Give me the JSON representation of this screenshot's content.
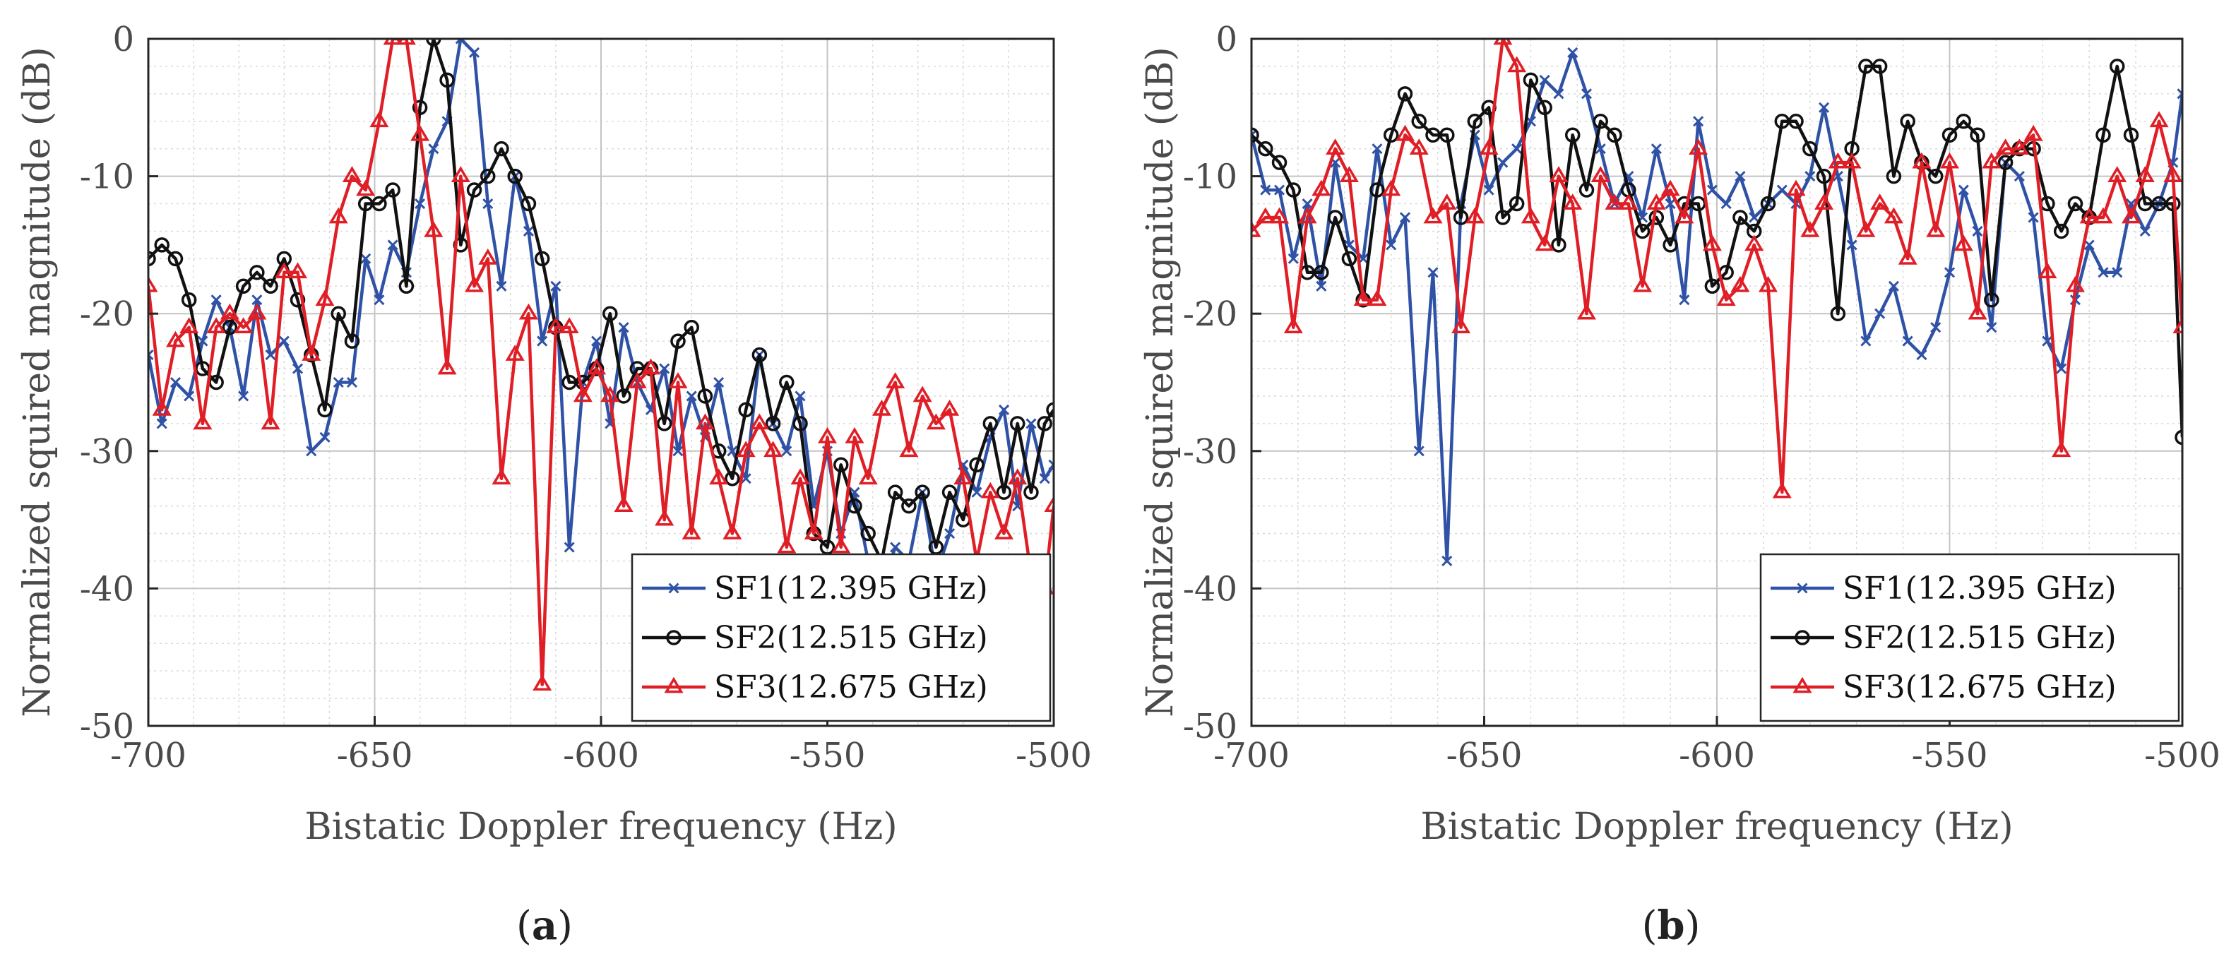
{
  "figure": {
    "panel_captions": [
      "(",
      "a",
      ")",
      "(",
      "b",
      ")"
    ]
  },
  "chart_data": [
    {
      "type": "line",
      "panel": "(a)",
      "xlabel": "Bistatic Doppler frequency (Hz)",
      "ylabel": "Normalized squired magnitude (dB)",
      "xlim": [
        -700,
        -500
      ],
      "ylim": [
        -50,
        0
      ],
      "xticks": [
        -700,
        -650,
        -600,
        -550,
        -500
      ],
      "xtick_labels": [
        "-700",
        "-650",
        "-600",
        "-550",
        "-500"
      ],
      "yticks": [
        0,
        -10,
        -20,
        -30,
        -40,
        -50
      ],
      "ytick_labels": [
        "0",
        "-10",
        "-20",
        "-30",
        "-40",
        "-50"
      ],
      "grid": true,
      "legend_position": "bottom-right",
      "series": [
        {
          "name": "SF1(12.395 GHz)",
          "color": "#2f52a6",
          "marker": "x",
          "x": [
            -700,
            -697,
            -694,
            -691,
            -688,
            -685,
            -682,
            -679,
            -676,
            -673,
            -670,
            -667,
            -664,
            -661,
            -658,
            -655,
            -652,
            -649,
            -646,
            -643,
            -640,
            -637,
            -634,
            -631,
            -628,
            -625,
            -622,
            -619,
            -616,
            -613,
            -610,
            -607,
            -604,
            -601,
            -598,
            -595,
            -592,
            -589,
            -586,
            -583,
            -580,
            -577,
            -574,
            -571,
            -568,
            -565,
            -562,
            -559,
            -556,
            -553,
            -550,
            -547,
            -544,
            -541,
            -538,
            -535,
            -532,
            -529,
            -526,
            -523,
            -520,
            -517,
            -514,
            -511,
            -508,
            -505,
            -502,
            -500
          ],
          "y": [
            -23,
            -28,
            -25,
            -26,
            -22,
            -19,
            -21,
            -26,
            -19,
            -23,
            -22,
            -24,
            -30,
            -29,
            -25,
            -25,
            -16,
            -19,
            -15,
            -17,
            -12,
            -8,
            -6,
            0,
            -1,
            -12,
            -18,
            -10,
            -14,
            -22,
            -18,
            -37,
            -25,
            -22,
            -28,
            -21,
            -25,
            -27,
            -24,
            -30,
            -26,
            -29,
            -25,
            -30,
            -32,
            -23,
            -28,
            -30,
            -26,
            -34,
            -30,
            -36,
            -33,
            -38,
            -40,
            -37,
            -38,
            -33,
            -39,
            -36,
            -31,
            -33,
            -29,
            -27,
            -34,
            -28,
            -32,
            -31
          ]
        },
        {
          "name": "SF2(12.515 GHz)",
          "color": "#111111",
          "marker": "o",
          "x": [
            -700,
            -697,
            -694,
            -691,
            -688,
            -685,
            -682,
            -679,
            -676,
            -673,
            -670,
            -667,
            -664,
            -661,
            -658,
            -655,
            -652,
            -649,
            -646,
            -643,
            -640,
            -637,
            -634,
            -631,
            -628,
            -625,
            -622,
            -619,
            -616,
            -613,
            -610,
            -607,
            -604,
            -601,
            -598,
            -595,
            -592,
            -589,
            -586,
            -583,
            -580,
            -577,
            -574,
            -571,
            -568,
            -565,
            -562,
            -559,
            -556,
            -553,
            -550,
            -547,
            -544,
            -541,
            -538,
            -535,
            -532,
            -529,
            -526,
            -523,
            -520,
            -517,
            -514,
            -511,
            -508,
            -505,
            -502,
            -500
          ],
          "y": [
            -16,
            -15,
            -16,
            -19,
            -24,
            -25,
            -21,
            -18,
            -17,
            -18,
            -16,
            -19,
            -23,
            -27,
            -20,
            -22,
            -12,
            -12,
            -11,
            -18,
            -5,
            0,
            -3,
            -15,
            -11,
            -10,
            -8,
            -10,
            -12,
            -16,
            -21,
            -25,
            -25,
            -24,
            -20,
            -26,
            -24,
            -24,
            -28,
            -22,
            -21,
            -26,
            -30,
            -32,
            -27,
            -23,
            -28,
            -25,
            -28,
            -36,
            -37,
            -31,
            -34,
            -36,
            -38,
            -33,
            -34,
            -33,
            -37,
            -33,
            -35,
            -31,
            -28,
            -33,
            -28,
            -33,
            -28,
            -27
          ]
        },
        {
          "name": "SF3(12.675 GHz)",
          "color": "#e01e26",
          "marker": "^",
          "x": [
            -700,
            -697,
            -694,
            -691,
            -688,
            -685,
            -682,
            -679,
            -676,
            -673,
            -670,
            -667,
            -664,
            -661,
            -658,
            -655,
            -652,
            -649,
            -646,
            -643,
            -640,
            -637,
            -634,
            -631,
            -628,
            -625,
            -622,
            -619,
            -616,
            -613,
            -610,
            -607,
            -604,
            -601,
            -598,
            -595,
            -592,
            -589,
            -586,
            -583,
            -580,
            -577,
            -574,
            -571,
            -568,
            -565,
            -562,
            -559,
            -556,
            -553,
            -550,
            -547,
            -544,
            -541,
            -538,
            -535,
            -532,
            -529,
            -526,
            -523,
            -520,
            -517,
            -514,
            -511,
            -508,
            -505,
            -502,
            -500
          ],
          "y": [
            -18,
            -27,
            -22,
            -21,
            -28,
            -21,
            -20,
            -21,
            -20,
            -28,
            -17,
            -17,
            -23,
            -19,
            -13,
            -10,
            -11,
            -6,
            0,
            0,
            -7,
            -14,
            -24,
            -10,
            -18,
            -16,
            -32,
            -23,
            -20,
            -47,
            -21,
            -21,
            -26,
            -24,
            -26,
            -34,
            -25,
            -24,
            -35,
            -25,
            -36,
            -28,
            -32,
            -36,
            -30,
            -28,
            -30,
            -37,
            -32,
            -36,
            -29,
            -37,
            -29,
            -32,
            -27,
            -25,
            -30,
            -26,
            -28,
            -27,
            -32,
            -38,
            -33,
            -36,
            -32,
            -39,
            -40,
            -34
          ]
        }
      ]
    },
    {
      "type": "line",
      "panel": "(b)",
      "xlabel": "Bistatic Doppler frequency (Hz)",
      "ylabel": "Normalized squired magnitude (dB)",
      "xlim": [
        -700,
        -500
      ],
      "ylim": [
        -50,
        0
      ],
      "xticks": [
        -700,
        -650,
        -600,
        -550,
        -500
      ],
      "xtick_labels": [
        "-700",
        "-650",
        "-600",
        "-550",
        "-500"
      ],
      "yticks": [
        0,
        -10,
        -20,
        -30,
        -40,
        -50
      ],
      "ytick_labels": [
        "0",
        "-10",
        "-20",
        "-30",
        "-40",
        "-50"
      ],
      "grid": true,
      "legend_position": "bottom-right",
      "series": [
        {
          "name": "SF1(12.395 GHz)",
          "color": "#2f52a6",
          "marker": "x",
          "x": [
            -700,
            -697,
            -694,
            -691,
            -688,
            -685,
            -682,
            -679,
            -676,
            -673,
            -670,
            -667,
            -664,
            -661,
            -658,
            -655,
            -652,
            -649,
            -646,
            -643,
            -640,
            -637,
            -634,
            -631,
            -628,
            -625,
            -622,
            -619,
            -616,
            -613,
            -610,
            -607,
            -604,
            -601,
            -598,
            -595,
            -592,
            -589,
            -586,
            -583,
            -580,
            -577,
            -574,
            -571,
            -568,
            -565,
            -562,
            -559,
            -556,
            -553,
            -550,
            -547,
            -544,
            -541,
            -538,
            -535,
            -532,
            -529,
            -526,
            -523,
            -520,
            -517,
            -514,
            -511,
            -508,
            -505,
            -502,
            -500
          ],
          "y": [
            -7,
            -11,
            -11,
            -16,
            -12,
            -18,
            -9,
            -15,
            -16,
            -8,
            -15,
            -13,
            -30,
            -17,
            -38,
            -12,
            -7,
            -11,
            -9,
            -8,
            -6,
            -3,
            -4,
            -1,
            -4,
            -8,
            -12,
            -10,
            -13,
            -8,
            -12,
            -19,
            -6,
            -11,
            -12,
            -10,
            -13,
            -12,
            -11,
            -12,
            -10,
            -5,
            -10,
            -15,
            -22,
            -20,
            -18,
            -22,
            -23,
            -21,
            -17,
            -11,
            -14,
            -21,
            -9,
            -10,
            -13,
            -22,
            -24,
            -19,
            -15,
            -17,
            -17,
            -12,
            -14,
            -12,
            -9,
            -4
          ]
        },
        {
          "name": "SF2(12.515 GHz)",
          "color": "#111111",
          "marker": "o",
          "x": [
            -700,
            -697,
            -694,
            -691,
            -688,
            -685,
            -682,
            -679,
            -676,
            -673,
            -670,
            -667,
            -664,
            -661,
            -658,
            -655,
            -652,
            -649,
            -646,
            -643,
            -640,
            -637,
            -634,
            -631,
            -628,
            -625,
            -622,
            -619,
            -616,
            -613,
            -610,
            -607,
            -604,
            -601,
            -598,
            -595,
            -592,
            -589,
            -586,
            -583,
            -580,
            -577,
            -574,
            -571,
            -568,
            -565,
            -562,
            -559,
            -556,
            -553,
            -550,
            -547,
            -544,
            -541,
            -538,
            -535,
            -532,
            -529,
            -526,
            -523,
            -520,
            -517,
            -514,
            -511,
            -508,
            -505,
            -502,
            -500
          ],
          "y": [
            -7,
            -8,
            -9,
            -11,
            -17,
            -17,
            -13,
            -16,
            -19,
            -11,
            -7,
            -4,
            -6,
            -7,
            -7,
            -13,
            -6,
            -5,
            -13,
            -12,
            -3,
            -5,
            -15,
            -7,
            -11,
            -6,
            -7,
            -11,
            -14,
            -13,
            -15,
            -12,
            -12,
            -18,
            -17,
            -13,
            -14,
            -12,
            -6,
            -6,
            -8,
            -10,
            -20,
            -8,
            -2,
            -2,
            -10,
            -6,
            -9,
            -10,
            -7,
            -6,
            -7,
            -19,
            -9,
            -8,
            -8,
            -12,
            -14,
            -12,
            -13,
            -7,
            -2,
            -7,
            -12,
            -12,
            -12,
            -29
          ]
        },
        {
          "name": "SF3(12.675 GHz)",
          "color": "#e01e26",
          "marker": "^",
          "x": [
            -700,
            -697,
            -694,
            -691,
            -688,
            -685,
            -682,
            -679,
            -676,
            -673,
            -670,
            -667,
            -664,
            -661,
            -658,
            -655,
            -652,
            -649,
            -646,
            -643,
            -640,
            -637,
            -634,
            -631,
            -628,
            -625,
            -622,
            -619,
            -616,
            -613,
            -610,
            -607,
            -604,
            -601,
            -598,
            -595,
            -592,
            -589,
            -586,
            -583,
            -580,
            -577,
            -574,
            -571,
            -568,
            -565,
            -562,
            -559,
            -556,
            -553,
            -550,
            -547,
            -544,
            -541,
            -538,
            -535,
            -532,
            -529,
            -526,
            -523,
            -520,
            -517,
            -514,
            -511,
            -508,
            -505,
            -502,
            -500
          ],
          "y": [
            -14,
            -13,
            -13,
            -21,
            -13,
            -11,
            -8,
            -10,
            -19,
            -19,
            -11,
            -7,
            -8,
            -13,
            -12,
            -21,
            -13,
            -8,
            0,
            -2,
            -13,
            -15,
            -10,
            -12,
            -20,
            -10,
            -12,
            -12,
            -18,
            -12,
            -11,
            -13,
            -8,
            -15,
            -19,
            -18,
            -15,
            -18,
            -33,
            -11,
            -14,
            -12,
            -9,
            -9,
            -14,
            -12,
            -13,
            -16,
            -9,
            -14,
            -9,
            -15,
            -20,
            -9,
            -8,
            -8,
            -7,
            -17,
            -30,
            -18,
            -13,
            -13,
            -10,
            -13,
            -10,
            -6,
            -10,
            -21
          ]
        }
      ]
    }
  ]
}
